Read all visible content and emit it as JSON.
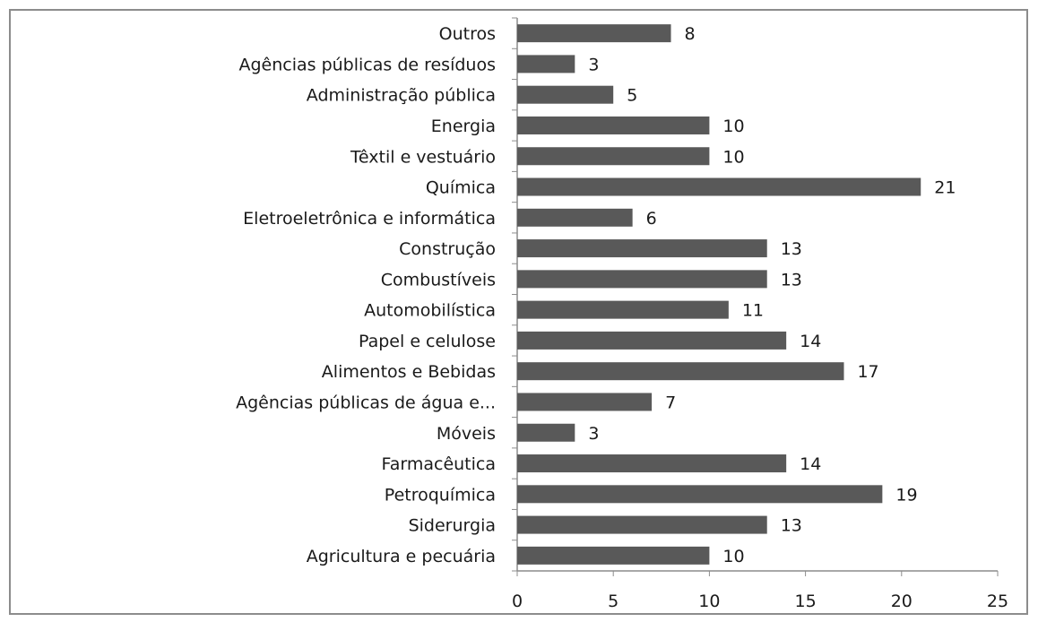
{
  "chart_data": {
    "type": "bar",
    "orientation": "horizontal",
    "title": "",
    "xlabel": "",
    "ylabel": "",
    "xlim": [
      0,
      25
    ],
    "x_ticks": [
      0,
      5,
      10,
      15,
      20,
      25
    ],
    "grid": false,
    "legend": "none",
    "bar_color": "#595959",
    "categories": [
      "Outros",
      "Agências públicas de resíduos",
      "Administração pública",
      "Energia",
      "Têxtil e vestuário",
      "Química",
      "Eletroeletrônica e informática",
      "Construção",
      "Combustíveis",
      "Automobilística",
      "Papel e celulose",
      "Alimentos e Bebidas",
      "Agências públicas de água e...",
      "Móveis",
      "Farmacêutica",
      "Petroquímica",
      "Siderurgia",
      "Agricultura e pecuária"
    ],
    "values": [
      8,
      3,
      5,
      10,
      10,
      21,
      6,
      13,
      13,
      11,
      14,
      17,
      7,
      3,
      14,
      19,
      13,
      10
    ]
  }
}
